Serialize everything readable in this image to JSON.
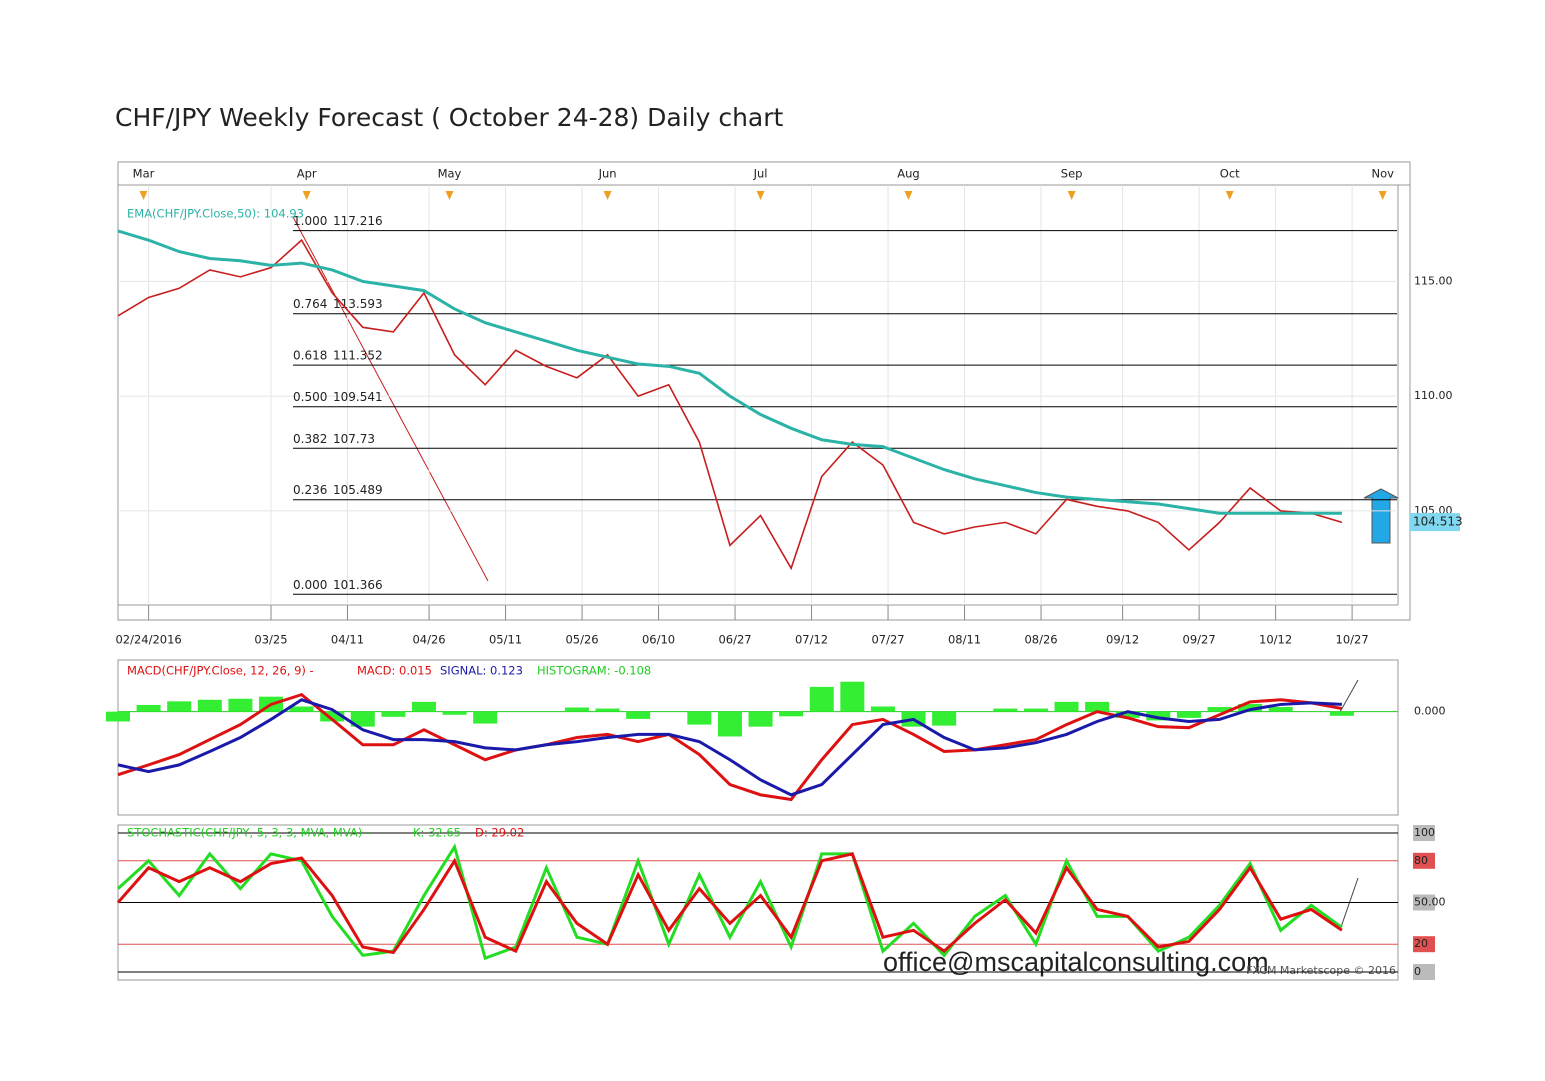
{
  "title": "CHF/JPY Weekly Forecast ( October 24-28) Daily chart",
  "watermark": "office@mscapitalconsulting.com",
  "credit": "FXCM Marketscope © 2016",
  "chart_data": [
    {
      "type": "line",
      "legend": "EMA(CHF/JPY.Close,50): 104.93",
      "grid": true,
      "x": [
        0,
        6,
        12,
        18,
        24,
        30,
        36,
        42,
        48,
        54,
        60,
        66,
        72,
        78,
        84,
        90,
        96,
        102,
        108,
        114,
        120,
        126,
        132,
        138,
        144,
        150,
        156,
        162,
        168,
        174,
        180,
        186,
        192,
        198,
        204,
        210,
        216,
        222,
        228,
        234,
        240
      ],
      "xlim": [
        0,
        251
      ],
      "xticks": [
        {
          "value": 6,
          "label": "02/24/2016"
        },
        {
          "value": 30,
          "label": "03/25"
        },
        {
          "value": 45,
          "label": "04/11"
        },
        {
          "value": 61,
          "label": "04/26"
        },
        {
          "value": 76,
          "label": "05/11"
        },
        {
          "value": 91,
          "label": "05/26"
        },
        {
          "value": 106,
          "label": "06/10"
        },
        {
          "value": 121,
          "label": "06/27"
        },
        {
          "value": 136,
          "label": "07/12"
        },
        {
          "value": 151,
          "label": "07/27"
        },
        {
          "value": 166,
          "label": "08/11"
        },
        {
          "value": 181,
          "label": "08/26"
        },
        {
          "value": 197,
          "label": "09/12"
        },
        {
          "value": 212,
          "label": "09/27"
        },
        {
          "value": 227,
          "label": "10/12"
        },
        {
          "value": 242,
          "label": "10/27"
        }
      ],
      "month_ticks": [
        {
          "value": 5,
          "label": "Mar"
        },
        {
          "value": 37,
          "label": "Apr"
        },
        {
          "value": 65,
          "label": "May"
        },
        {
          "value": 96,
          "label": "Jun"
        },
        {
          "value": 126,
          "label": "Jul"
        },
        {
          "value": 155,
          "label": "Aug"
        },
        {
          "value": 187,
          "label": "Sep"
        },
        {
          "value": 218,
          "label": "Oct"
        },
        {
          "value": 248,
          "label": "Nov"
        }
      ],
      "ylim": [
        100.9,
        118.2
      ],
      "yticks": [
        {
          "value": 105,
          "label": "105.00"
        },
        {
          "value": 110,
          "label": "110.00"
        },
        {
          "value": 115,
          "label": "115.00"
        }
      ],
      "series": [
        {
          "color": "#c81e1e",
          "values": [
            113.5,
            114.3,
            114.7,
            115.5,
            115.2,
            115.6,
            116.8,
            114.5,
            113.0,
            112.8,
            114.5,
            111.8,
            110.5,
            112.0,
            111.3,
            110.8,
            111.8,
            110.0,
            110.5,
            108.0,
            103.5,
            104.8,
            102.5,
            106.5,
            108.0,
            107.0,
            104.5,
            104.0,
            104.3,
            104.5,
            104.0,
            105.5,
            105.2,
            105.0,
            104.5,
            103.3,
            104.5,
            106.0,
            105.0,
            104.9,
            104.5
          ]
        },
        {
          "name": "EMA(CHF/JPY.Close,50): 104.93",
          "color": "#2ab3a6",
          "values": [
            117.2,
            116.8,
            116.3,
            116.0,
            115.9,
            115.7,
            115.8,
            115.5,
            115.0,
            114.8,
            114.6,
            113.8,
            113.2,
            112.8,
            112.4,
            112.0,
            111.7,
            111.4,
            111.3,
            111.0,
            110.0,
            109.2,
            108.6,
            108.1,
            107.9,
            107.8,
            107.3,
            106.8,
            106.4,
            106.1,
            105.8,
            105.6,
            105.5,
            105.4,
            105.3,
            105.1,
            104.9,
            104.9,
            104.9,
            104.9,
            104.9
          ]
        }
      ],
      "fib_levels": [
        {
          "label": "1.000",
          "value": 117.216
        },
        {
          "label": "0.764",
          "value": 113.593
        },
        {
          "label": "0.618",
          "value": 111.352
        },
        {
          "label": "0.500",
          "value": 109.541
        },
        {
          "label": "0.382",
          "value": 107.73
        },
        {
          "label": "0.236",
          "value": 105.489
        },
        {
          "label": "0.000",
          "value": 101.366
        }
      ],
      "last_price": 104.513
    },
    {
      "type": "line",
      "legend": [
        "MACD(CHF/JPY.Close, 12, 26, 9) -",
        "MACD: 0.015",
        "SIGNAL: 0.123",
        "HISTOGRAM: -0.108"
      ],
      "x": [
        0,
        6,
        12,
        18,
        24,
        30,
        36,
        42,
        48,
        54,
        60,
        66,
        72,
        78,
        84,
        90,
        96,
        102,
        108,
        114,
        120,
        126,
        132,
        138,
        144,
        150,
        156,
        162,
        168,
        174,
        180,
        186,
        192,
        198,
        204,
        210,
        216,
        222,
        228,
        234,
        240
      ],
      "xlim": [
        0,
        251
      ],
      "ylim": [
        -2,
        1
      ],
      "yticks": [
        {
          "value": 0,
          "label": "0.000"
        }
      ],
      "zero_line_color": "#22cc22",
      "series": [
        {
          "kind": "bar",
          "color": "#33ee33",
          "values": [
            -0.19,
            0.13,
            0.2,
            0.23,
            0.25,
            0.29,
            0.1,
            -0.19,
            -0.29,
            -0.1,
            0.19,
            -0.06,
            -0.23,
            0,
            0,
            0.08,
            0.06,
            -0.14,
            0,
            -0.25,
            -0.48,
            -0.29,
            -0.09,
            0.48,
            0.58,
            0.1,
            -0.29,
            -0.27,
            0,
            0.06,
            0.06,
            0.19,
            0.19,
            -0.12,
            -0.17,
            -0.12,
            0.09,
            0.15,
            0.09,
            0,
            -0.08
          ]
        },
        {
          "color": "#dd1111",
          "values": [
            -1.22,
            -1.03,
            -0.83,
            -0.54,
            -0.25,
            0.14,
            0.33,
            -0.15,
            -0.64,
            -0.64,
            -0.35,
            -0.64,
            -0.93,
            -0.74,
            -0.64,
            -0.5,
            -0.44,
            -0.58,
            -0.44,
            -0.83,
            -1.41,
            -1.61,
            -1.7,
            -0.93,
            -0.25,
            -0.15,
            -0.44,
            -0.77,
            -0.74,
            -0.64,
            -0.54,
            -0.25,
            0,
            -0.12,
            -0.29,
            -0.31,
            -0.06,
            0.19,
            0.23,
            0.17,
            0.06
          ]
        },
        {
          "color": "#1a1aaa",
          "values": [
            -1.03,
            -1.16,
            -1.03,
            -0.77,
            -0.5,
            -0.15,
            0.23,
            0.04,
            -0.35,
            -0.54,
            -0.54,
            -0.58,
            -0.7,
            -0.74,
            -0.64,
            -0.58,
            -0.5,
            -0.44,
            -0.44,
            -0.58,
            -0.93,
            -1.32,
            -1.61,
            -1.41,
            -0.83,
            -0.25,
            -0.15,
            -0.5,
            -0.74,
            -0.7,
            -0.6,
            -0.44,
            -0.19,
            0,
            -0.12,
            -0.19,
            -0.15,
            0.04,
            0.14,
            0.17,
            0.14
          ]
        }
      ]
    },
    {
      "type": "line",
      "legend": [
        "STOCHASTIC(CHF/JPY, 5, 3, 3, MVA, MVA) -",
        "K: 32.65",
        "D: 29.02"
      ],
      "x": [
        0,
        6,
        12,
        18,
        24,
        30,
        36,
        42,
        48,
        54,
        60,
        66,
        72,
        78,
        84,
        90,
        96,
        102,
        108,
        114,
        120,
        126,
        132,
        138,
        144,
        150,
        156,
        162,
        168,
        174,
        180,
        186,
        192,
        198,
        204,
        210,
        216,
        222,
        228,
        234,
        240
      ],
      "xlim": [
        0,
        251
      ],
      "ylim": [
        0,
        100
      ],
      "yticks": [
        0,
        20,
        {
          "value": 50,
          "label": "50.00"
        },
        80,
        100
      ],
      "red_lines": [
        20,
        80
      ],
      "series": [
        {
          "color": "#22dd22",
          "values": [
            60,
            80,
            55,
            85,
            60,
            85,
            80,
            40,
            12,
            15,
            55,
            90,
            10,
            18,
            75,
            25,
            20,
            80,
            20,
            70,
            25,
            65,
            18,
            85,
            85,
            15,
            35,
            12,
            40,
            55,
            20,
            80,
            40,
            40,
            15,
            25,
            48,
            78,
            30,
            48,
            32
          ]
        },
        {
          "color": "#dd1111",
          "values": [
            50,
            75,
            65,
            75,
            65,
            78,
            82,
            55,
            18,
            14,
            45,
            80,
            25,
            15,
            65,
            35,
            20,
            70,
            30,
            60,
            35,
            55,
            25,
            80,
            85,
            25,
            30,
            15,
            35,
            52,
            28,
            75,
            45,
            40,
            18,
            22,
            45,
            75,
            38,
            45,
            30
          ]
        }
      ]
    }
  ]
}
